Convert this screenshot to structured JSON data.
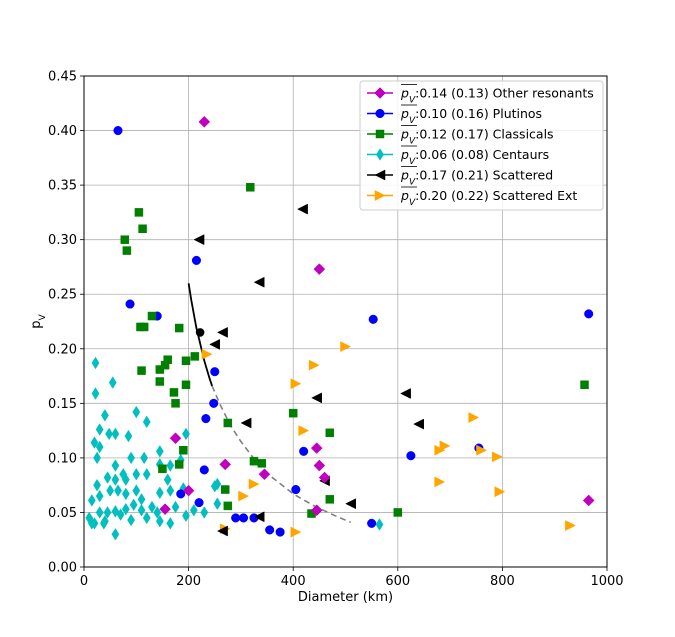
{
  "chart_data": {
    "type": "scatter",
    "xlabel": "Diameter (km)",
    "ylabel": "p",
    "ylabel_sub": "V",
    "xlim": [
      0,
      1000
    ],
    "ylim": [
      0.0,
      0.45
    ],
    "xticks": [
      "0",
      "200",
      "400",
      "600",
      "800",
      "1000"
    ],
    "yticks": [
      "0.00",
      "0.05",
      "0.10",
      "0.15",
      "0.20",
      "0.25",
      "0.30",
      "0.35",
      "0.40",
      "0.45"
    ],
    "grid": true,
    "legend_placement": "top-right",
    "series": [
      {
        "name": "Other resonants",
        "legend_stats": ":0.14 (0.13) Other resonants",
        "legend_symbol": "p",
        "legend_symbol_sub": "V",
        "marker": "diamond",
        "color": "#bf00bf",
        "points": [
          [
            230,
            0.408
          ],
          [
            450,
            0.273
          ],
          [
            175,
            0.118
          ],
          [
            270,
            0.094
          ],
          [
            445,
            0.109
          ],
          [
            450,
            0.093
          ],
          [
            460,
            0.082
          ],
          [
            345,
            0.085
          ],
          [
            200,
            0.07
          ],
          [
            155,
            0.053
          ],
          [
            445,
            0.052
          ],
          [
            965,
            0.061
          ]
        ]
      },
      {
        "name": "Plutinos",
        "legend_stats": ":0.10 (0.16) Plutinos",
        "legend_symbol": "p",
        "legend_symbol_sub": "V",
        "marker": "circle",
        "color": "#0000ff",
        "points": [
          [
            65,
            0.4
          ],
          [
            88,
            0.241
          ],
          [
            140,
            0.23
          ],
          [
            215,
            0.281
          ],
          [
            553,
            0.227
          ],
          [
            965,
            0.232
          ],
          [
            250,
            0.179
          ],
          [
            248,
            0.15
          ],
          [
            233,
            0.136
          ],
          [
            420,
            0.106
          ],
          [
            755,
            0.109
          ],
          [
            625,
            0.102
          ],
          [
            230,
            0.089
          ],
          [
            405,
            0.071
          ],
          [
            185,
            0.067
          ],
          [
            220,
            0.059
          ],
          [
            290,
            0.045
          ],
          [
            305,
            0.045
          ],
          [
            325,
            0.045
          ],
          [
            355,
            0.034
          ],
          [
            375,
            0.032
          ],
          [
            550,
            0.04
          ]
        ]
      },
      {
        "name": "Classicals",
        "legend_stats": ":0.12 (0.17) Classicals",
        "legend_symbol": "p",
        "legend_symbol_sub": "V",
        "marker": "square",
        "color": "#007f00",
        "points": [
          [
            105,
            0.325
          ],
          [
            112,
            0.31
          ],
          [
            78,
            0.3
          ],
          [
            82,
            0.29
          ],
          [
            318,
            0.348
          ],
          [
            130,
            0.23
          ],
          [
            108,
            0.22
          ],
          [
            115,
            0.22
          ],
          [
            182,
            0.219
          ],
          [
            110,
            0.18
          ],
          [
            145,
            0.181
          ],
          [
            155,
            0.185
          ],
          [
            160,
            0.19
          ],
          [
            195,
            0.189
          ],
          [
            212,
            0.193
          ],
          [
            145,
            0.17
          ],
          [
            172,
            0.16
          ],
          [
            175,
            0.15
          ],
          [
            195,
            0.167
          ],
          [
            957,
            0.167
          ],
          [
            400,
            0.141
          ],
          [
            275,
            0.132
          ],
          [
            470,
            0.123
          ],
          [
            190,
            0.107
          ],
          [
            182,
            0.094
          ],
          [
            150,
            0.09
          ],
          [
            325,
            0.097
          ],
          [
            340,
            0.095
          ],
          [
            270,
            0.071
          ],
          [
            470,
            0.062
          ],
          [
            275,
            0.056
          ],
          [
            435,
            0.049
          ],
          [
            600,
            0.05
          ]
        ]
      },
      {
        "name": "Centaurs",
        "legend_stats": ":0.06 (0.08) Centaurs",
        "legend_symbol": "p",
        "legend_symbol_sub": "V",
        "marker": "thin_diamond",
        "color": "#00bfbf",
        "points": [
          [
            22,
            0.187
          ],
          [
            55,
            0.169
          ],
          [
            22,
            0.159
          ],
          [
            40,
            0.139
          ],
          [
            100,
            0.142
          ],
          [
            30,
            0.126
          ],
          [
            48,
            0.122
          ],
          [
            60,
            0.122
          ],
          [
            20,
            0.114
          ],
          [
            30,
            0.11
          ],
          [
            85,
            0.12
          ],
          [
            120,
            0.133
          ],
          [
            145,
            0.106
          ],
          [
            195,
            0.122
          ],
          [
            25,
            0.1
          ],
          [
            60,
            0.093
          ],
          [
            90,
            0.1
          ],
          [
            115,
            0.1
          ],
          [
            145,
            0.094
          ],
          [
            165,
            0.093
          ],
          [
            185,
            0.098
          ],
          [
            25,
            0.075
          ],
          [
            45,
            0.082
          ],
          [
            60,
            0.08
          ],
          [
            75,
            0.085
          ],
          [
            80,
            0.08
          ],
          [
            100,
            0.085
          ],
          [
            120,
            0.085
          ],
          [
            160,
            0.08
          ],
          [
            15,
            0.061
          ],
          [
            30,
            0.065
          ],
          [
            50,
            0.07
          ],
          [
            65,
            0.07
          ],
          [
            80,
            0.067
          ],
          [
            100,
            0.07
          ],
          [
            110,
            0.062
          ],
          [
            145,
            0.068
          ],
          [
            165,
            0.07
          ],
          [
            190,
            0.072
          ],
          [
            250,
            0.074
          ],
          [
            255,
            0.076
          ],
          [
            10,
            0.045
          ],
          [
            20,
            0.04
          ],
          [
            30,
            0.05
          ],
          [
            40,
            0.042
          ],
          [
            45,
            0.05
          ],
          [
            60,
            0.051
          ],
          [
            70,
            0.048
          ],
          [
            80,
            0.053
          ],
          [
            95,
            0.057
          ],
          [
            110,
            0.052
          ],
          [
            120,
            0.045
          ],
          [
            130,
            0.055
          ],
          [
            140,
            0.05
          ],
          [
            165,
            0.04
          ],
          [
            175,
            0.055
          ],
          [
            195,
            0.047
          ],
          [
            210,
            0.052
          ],
          [
            230,
            0.05
          ],
          [
            255,
            0.058
          ],
          [
            15,
            0.04
          ],
          [
            38,
            0.04
          ],
          [
            60,
            0.03
          ],
          [
            90,
            0.043
          ],
          [
            145,
            0.042
          ],
          [
            565,
            0.039
          ]
        ]
      },
      {
        "name": "Scattered",
        "legend_stats": ":0.17 (0.21) Scattered",
        "legend_symbol": "p",
        "legend_symbol_sub": "V",
        "marker": "triangle_left",
        "color": "#000000",
        "points": [
          [
            220,
            0.3
          ],
          [
            418,
            0.328
          ],
          [
            335,
            0.261
          ],
          [
            265,
            0.215
          ],
          [
            250,
            0.204
          ],
          [
            615,
            0.159
          ],
          [
            445,
            0.155
          ],
          [
            310,
            0.132
          ],
          [
            640,
            0.131
          ],
          [
            460,
            0.079
          ],
          [
            510,
            0.058
          ],
          [
            335,
            0.046
          ],
          [
            265,
            0.033
          ]
        ]
      },
      {
        "name": "Scattered Ext",
        "legend_stats": ":0.20 (0.22) Scattered Ext",
        "legend_symbol": "p",
        "legend_symbol_sub": "V",
        "marker": "triangle_right",
        "color": "#ffa500",
        "points": [
          [
            500,
            0.202
          ],
          [
            235,
            0.195
          ],
          [
            440,
            0.185
          ],
          [
            405,
            0.168
          ],
          [
            745,
            0.137
          ],
          [
            420,
            0.125
          ],
          [
            690,
            0.111
          ],
          [
            680,
            0.107
          ],
          [
            760,
            0.107
          ],
          [
            790,
            0.101
          ],
          [
            305,
            0.065
          ],
          [
            325,
            0.076
          ],
          [
            680,
            0.078
          ],
          [
            795,
            0.069
          ],
          [
            270,
            0.035
          ],
          [
            405,
            0.032
          ],
          [
            930,
            0.038
          ]
        ]
      }
    ],
    "curve": {
      "solid_points": [
        [
          200,
          0.26
        ],
        [
          205,
          0.245
        ],
        [
          210,
          0.232
        ],
        [
          215,
          0.219
        ],
        [
          220,
          0.209
        ],
        [
          225,
          0.199
        ],
        [
          230,
          0.189
        ],
        [
          235,
          0.181
        ],
        [
          240,
          0.173
        ],
        [
          245,
          0.166
        ]
      ],
      "dashed_points": [
        [
          245,
          0.166
        ],
        [
          260,
          0.149
        ],
        [
          280,
          0.13
        ],
        [
          300,
          0.115
        ],
        [
          330,
          0.096
        ],
        [
          360,
          0.082
        ],
        [
          400,
          0.067
        ],
        [
          440,
          0.056
        ],
        [
          480,
          0.047
        ],
        [
          510,
          0.041
        ]
      ],
      "highlight_point": [
        222,
        0.215
      ],
      "colors": {
        "solid": "#000000",
        "dashed": "#808080"
      }
    }
  }
}
